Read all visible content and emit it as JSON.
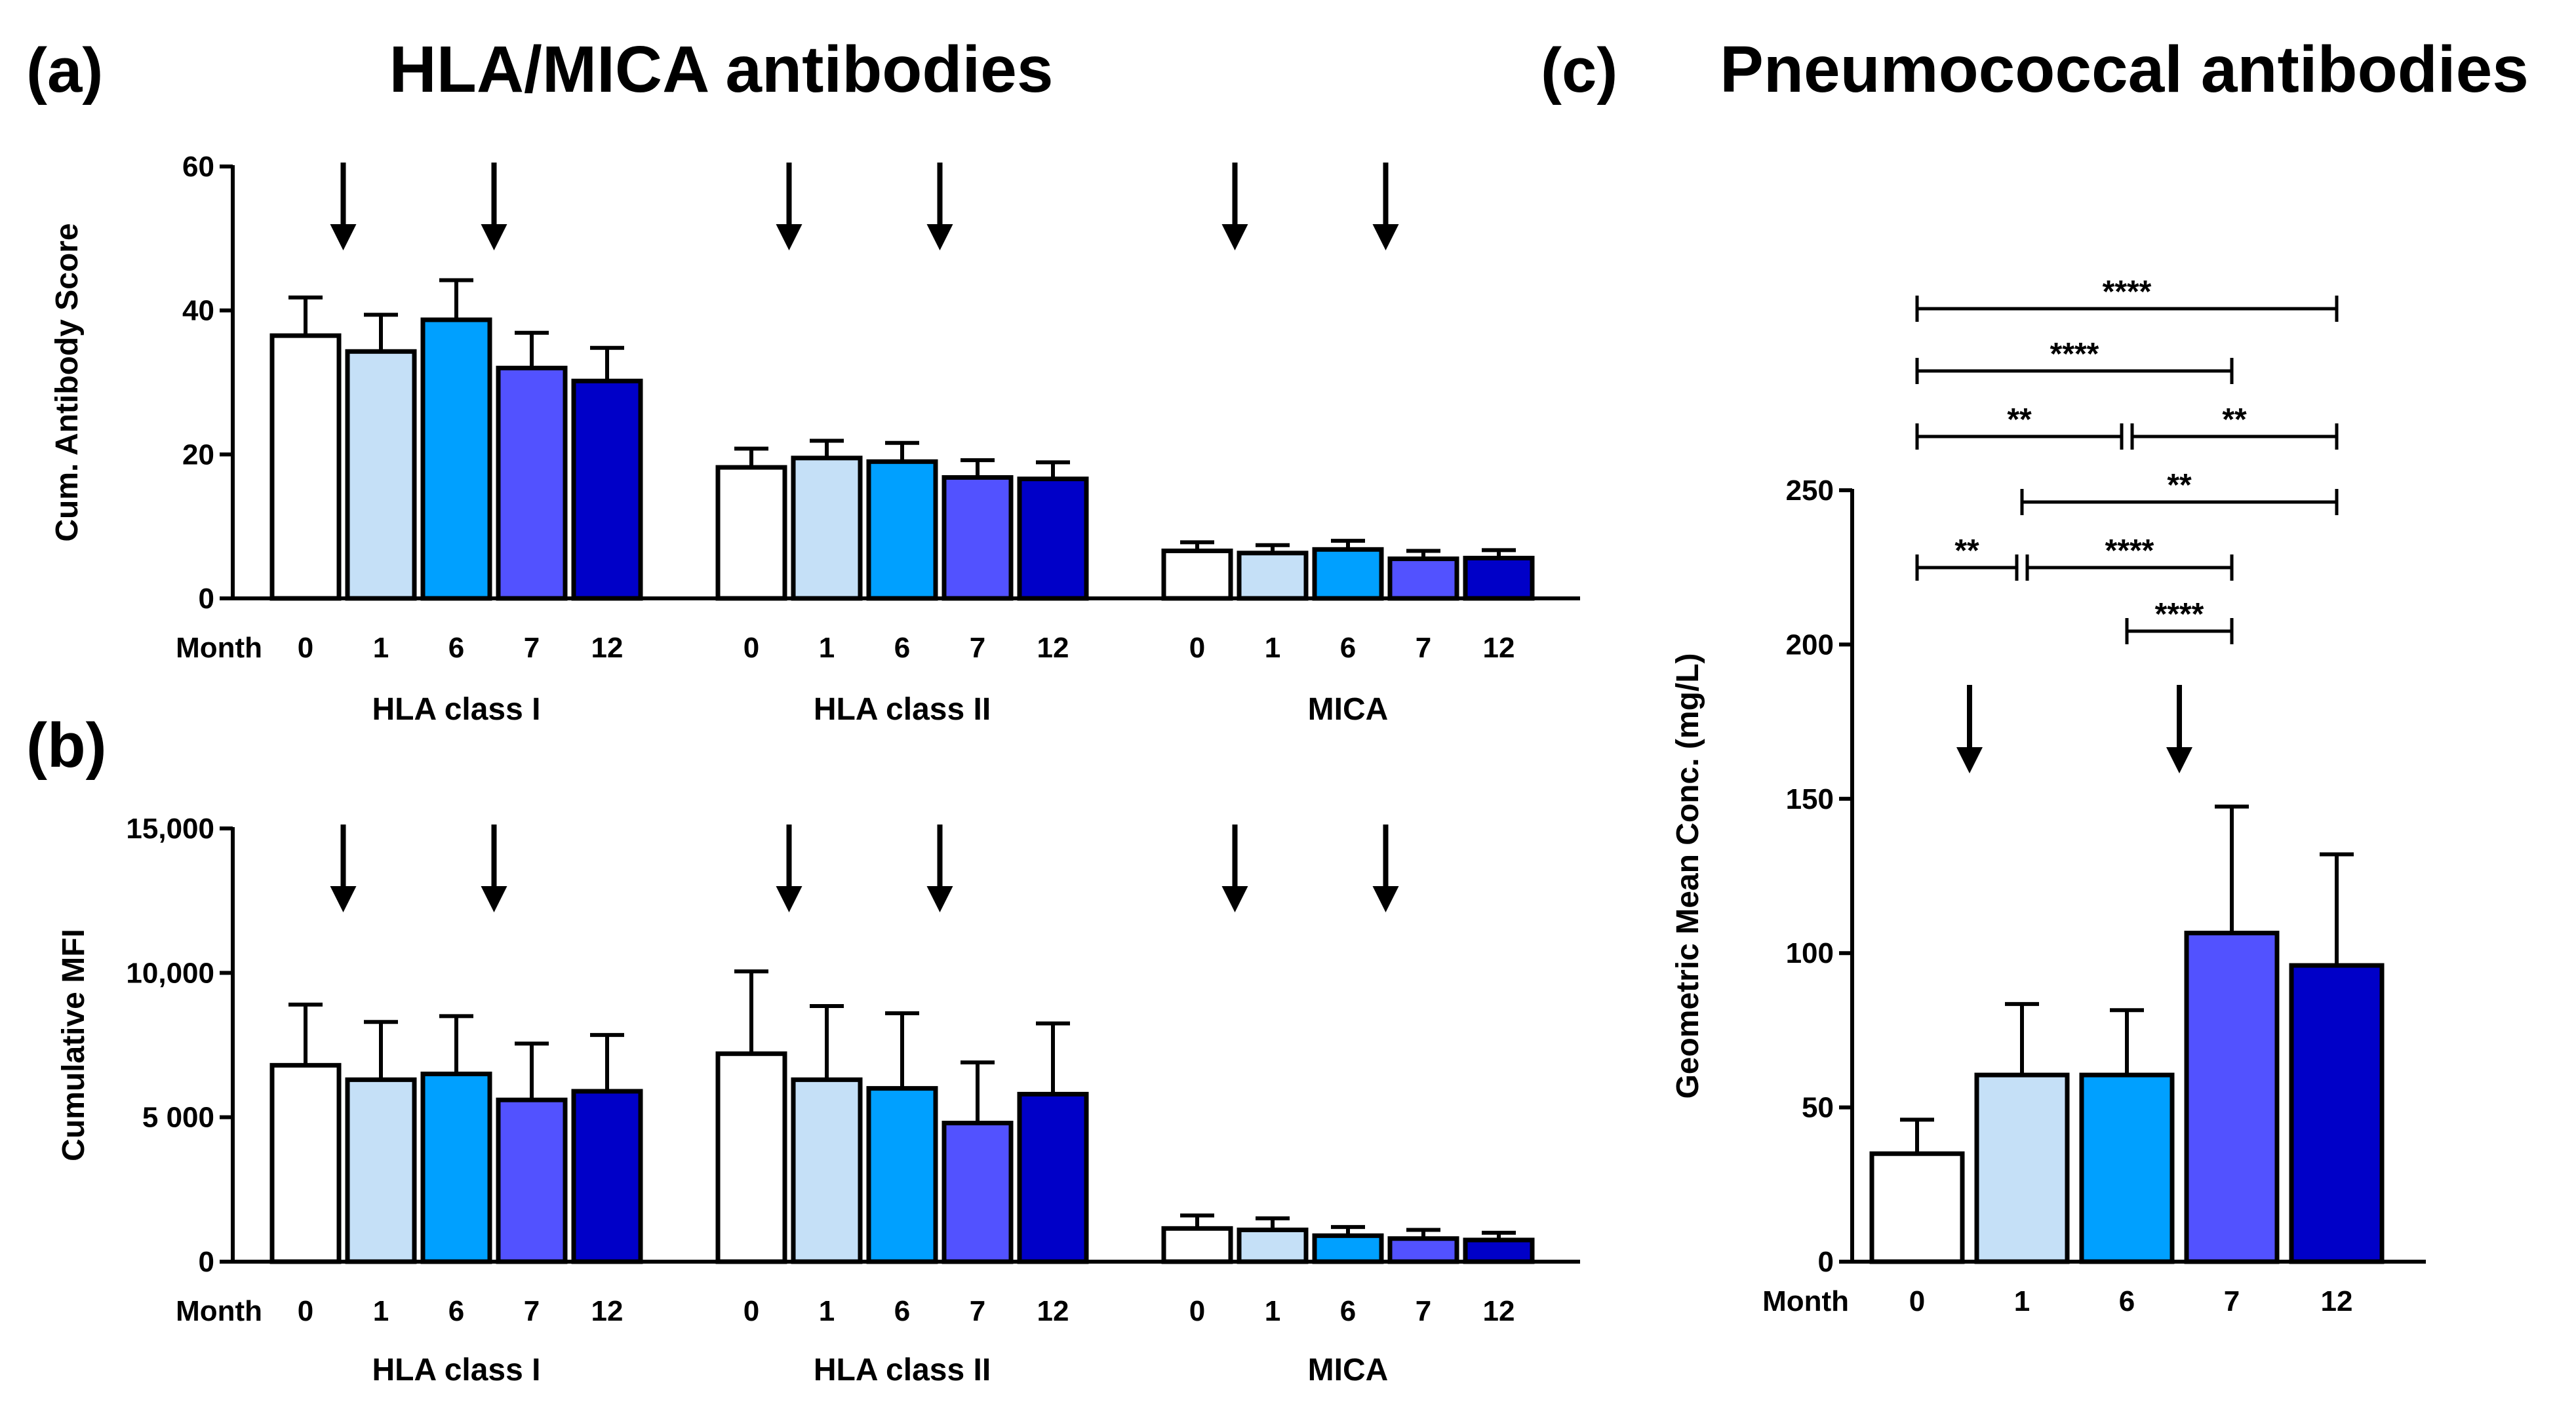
{
  "figure": {
    "title_left": "HLA/MICA antibodies",
    "title_right": "Pneumococcal antibodies"
  },
  "colors": {
    "month_0": "#ffffff",
    "month_1": "#c5e0f7",
    "month_6": "#00a0ff",
    "month_7": "#5252ff",
    "month_12": "#0000c8",
    "outline": "#000000"
  },
  "chart_data": [
    {
      "id": "a",
      "panel_label": "(a)",
      "type": "bar",
      "ylabel": "Cum. Antibody Score",
      "ylim": [
        0,
        60
      ],
      "yticks": [
        "0",
        "20",
        "40",
        "60"
      ],
      "month_prefix": "Month",
      "months": [
        "0",
        "1",
        "6",
        "7",
        "12"
      ],
      "groups": [
        {
          "label": "HLA class I",
          "values": [
            36.5,
            34.3,
            38.7,
            32.0,
            30.2
          ],
          "errors": [
            5.3,
            5.1,
            5.5,
            4.9,
            4.6
          ],
          "arrows_after": [
            0,
            2
          ]
        },
        {
          "label": "HLA class II",
          "values": [
            18.2,
            19.5,
            19.0,
            16.8,
            16.6
          ],
          "errors": [
            2.6,
            2.4,
            2.6,
            2.4,
            2.3
          ],
          "arrows_after": [
            0,
            2
          ]
        },
        {
          "label": "MICA",
          "values": [
            6.6,
            6.3,
            6.8,
            5.5,
            5.6
          ],
          "errors": [
            1.2,
            1.1,
            1.2,
            1.1,
            1.1
          ],
          "arrows_after": [
            0,
            2
          ]
        }
      ]
    },
    {
      "id": "b",
      "panel_label": "(b)",
      "type": "bar",
      "ylabel": "Cumulative MFI",
      "ylim": [
        0,
        15000
      ],
      "yticks": [
        "0",
        "5 000",
        "10,000",
        "15,000"
      ],
      "month_prefix": "Month",
      "months": [
        "0",
        "1",
        "6",
        "7",
        "12"
      ],
      "groups": [
        {
          "label": "HLA class I",
          "values": [
            6800,
            6300,
            6500,
            5600,
            5900
          ],
          "errors": [
            2100,
            2000,
            2000,
            1950,
            1950
          ],
          "arrows_after": [
            0,
            2
          ]
        },
        {
          "label": "HLA class II",
          "values": [
            7200,
            6300,
            6000,
            4800,
            5800
          ],
          "errors": [
            2850,
            2550,
            2600,
            2100,
            2450
          ],
          "arrows_after": [
            0,
            2
          ]
        },
        {
          "label": "MICA",
          "values": [
            1150,
            1100,
            900,
            800,
            750
          ],
          "errors": [
            450,
            400,
            300,
            300,
            250
          ],
          "arrows_after": [
            0,
            2
          ]
        }
      ]
    },
    {
      "id": "c",
      "panel_label": "(c)",
      "type": "bar",
      "ylabel": "Geometric Mean Conc. (mg/L)",
      "ylim": [
        0,
        250
      ],
      "yticks": [
        "0",
        "50",
        "100",
        "150",
        "200",
        "250"
      ],
      "month_prefix": "Month",
      "categories": [
        "0",
        "1",
        "6",
        "7",
        "12"
      ],
      "values": [
        35,
        60.5,
        60.5,
        106.5,
        96
      ],
      "errors": [
        11,
        23,
        21,
        41,
        36
      ],
      "arrows_after": [
        0,
        2
      ],
      "significance": [
        {
          "from": 0,
          "to": 4,
          "label": "****"
        },
        {
          "from": 0,
          "to": 3,
          "label": "****"
        },
        {
          "from": 0,
          "to": 2,
          "label": "**"
        },
        {
          "from": 2,
          "to": 4,
          "label": "**"
        },
        {
          "from": 1,
          "to": 4,
          "label": "**"
        },
        {
          "from": 0,
          "to": 1,
          "label": "**"
        },
        {
          "from": 1,
          "to": 3,
          "label": "****"
        },
        {
          "from": 2,
          "to": 3,
          "label": "****"
        }
      ]
    }
  ]
}
